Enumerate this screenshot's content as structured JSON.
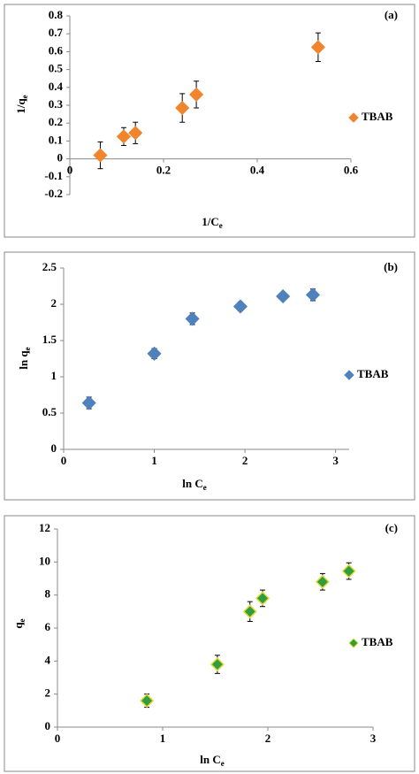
{
  "chart_data": [
    {
      "type": "scatter",
      "panel_label": "(a)",
      "xlabel": [
        "1/C",
        "e"
      ],
      "ylabel": [
        "1/q",
        "e"
      ],
      "xlim": [
        0,
        0.6
      ],
      "xticks": [
        0,
        0.2,
        0.4,
        0.6
      ],
      "ylim": [
        -0.2,
        0.8
      ],
      "yticks": [
        -0.2,
        -0.1,
        0,
        0.1,
        0.2,
        0.3,
        0.4,
        0.5,
        0.6,
        0.7,
        0.8
      ],
      "series": [
        {
          "name": "TBAB",
          "color": "#f0852d",
          "edge": "#f0852d",
          "x": [
            0.065,
            0.115,
            0.14,
            0.24,
            0.27,
            0.53
          ],
          "values": [
            0.02,
            0.125,
            0.145,
            0.285,
            0.36,
            0.625
          ],
          "errors": [
            0.075,
            0.05,
            0.06,
            0.08,
            0.075,
            0.08
          ]
        }
      ]
    },
    {
      "type": "scatter",
      "panel_label": "(b)",
      "xlabel": [
        "ln C",
        "e"
      ],
      "ylabel": [
        "ln q",
        "e"
      ],
      "xlim": [
        0,
        3.15
      ],
      "xticks": [
        0,
        1,
        2,
        3
      ],
      "ylim": [
        0,
        2.5
      ],
      "yticks": [
        0,
        0.5,
        1,
        1.5,
        2,
        2.5
      ],
      "series": [
        {
          "name": "TBAB",
          "color": "#4f81bd",
          "edge": "#4f81bd",
          "x": [
            0.28,
            1.0,
            1.42,
            1.95,
            2.42,
            2.75
          ],
          "values": [
            0.64,
            1.32,
            1.8,
            1.97,
            2.11,
            2.13
          ],
          "errors": [
            0.08,
            0.07,
            0.08,
            0.06,
            0.05,
            0.08
          ]
        }
      ]
    },
    {
      "type": "scatter",
      "panel_label": "(c)",
      "xlabel": [
        "ln C",
        "e"
      ],
      "ylabel": [
        "q",
        "e"
      ],
      "xlim": [
        0,
        3
      ],
      "xticks": [
        0,
        1,
        2,
        3
      ],
      "ylim": [
        0,
        12
      ],
      "yticks": [
        0,
        2,
        4,
        6,
        8,
        10,
        12
      ],
      "series": [
        {
          "name": "TBAB",
          "color": "#2e9e3f",
          "edge": "#e8d83a",
          "x": [
            0.85,
            1.52,
            1.83,
            1.95,
            2.52,
            2.77
          ],
          "values": [
            1.6,
            3.8,
            7.0,
            7.8,
            8.8,
            9.45
          ],
          "errors": [
            0.4,
            0.55,
            0.6,
            0.5,
            0.5,
            0.5
          ]
        }
      ]
    }
  ]
}
